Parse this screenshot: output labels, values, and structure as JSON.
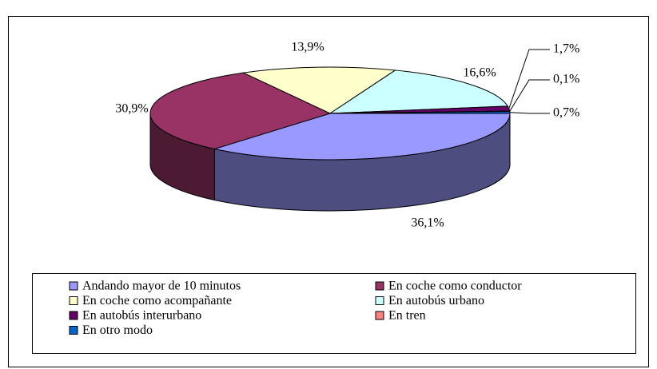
{
  "chart_data": {
    "type": "pie3d",
    "categories": [
      "Andando mayor de 10 minutos",
      "En coche como conductor",
      "En coche como acompañante",
      "En autobús urbano",
      "En autobús interurbano",
      "En tren",
      "En otro modo"
    ],
    "values": [
      36.1,
      30.9,
      13.9,
      16.6,
      1.7,
      0.1,
      0.7
    ],
    "value_labels": [
      "36,1%",
      "30,9%",
      "13,9%",
      "16,6%",
      "1,7%",
      "0,1%",
      "0,7%"
    ],
    "colors": [
      "#9999ff",
      "#993366",
      "#ffffcc",
      "#ccffff",
      "#660066",
      "#ff8080",
      "#0066cc"
    ],
    "legend": "bottom"
  }
}
